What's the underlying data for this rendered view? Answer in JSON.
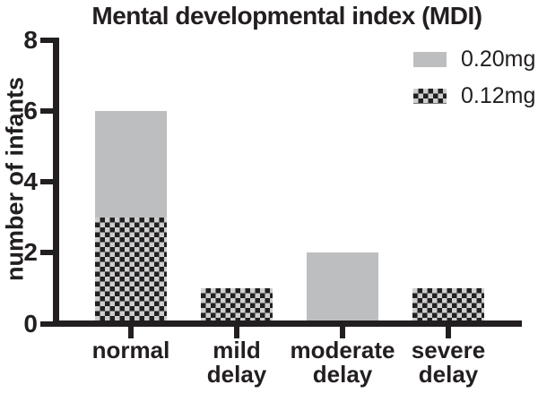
{
  "chart_data": {
    "type": "bar",
    "stacked": true,
    "title": "Mental developmental index (MDI)",
    "ylabel": "number of infants",
    "xlabel": "",
    "categories": [
      "normal",
      "mild\ndelay",
      "moderate\ndelay",
      "severe\ndelay"
    ],
    "series": [
      {
        "name": "0.12mg",
        "pattern": "checker",
        "values": [
          3,
          1,
          0,
          1
        ]
      },
      {
        "name": "0.20mg",
        "pattern": "solid",
        "values": [
          3,
          0,
          2,
          0
        ]
      }
    ],
    "stack_totals": [
      6,
      1,
      2,
      1
    ],
    "ylim": [
      0,
      8
    ],
    "yticks": [
      0,
      2,
      4,
      6,
      8
    ],
    "grid": false,
    "legend": {
      "position": "top-right",
      "items": [
        {
          "label": "0.20mg",
          "pattern": "solid"
        },
        {
          "label": "0.12mg",
          "pattern": "checker"
        }
      ]
    },
    "colors": {
      "solid_fill": "#bcbec0",
      "checker_dark": "#242021",
      "checker_light": "#cdced0",
      "axis_and_text": "#231f20",
      "background": "#ffffff"
    }
  }
}
